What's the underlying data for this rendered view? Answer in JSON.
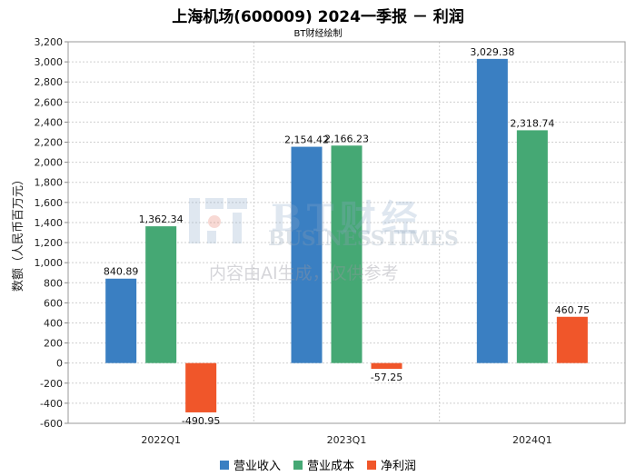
{
  "chart_data": {
    "type": "bar",
    "title": "上海机场(600009) 2024一季报 － 利润",
    "subtitle": "BT财经绘制",
    "xlabel": "",
    "ylabel": "数额（人民币百万元）",
    "ylim": [
      -600,
      3200
    ],
    "ytick_step": 200,
    "ytick_labels": [
      "-600",
      "-400",
      "-200",
      "0",
      "200",
      "400",
      "600",
      "800",
      "1,000",
      "1,200",
      "1,400",
      "1,600",
      "1,800",
      "2,000",
      "2,200",
      "2,400",
      "2,600",
      "2,800",
      "3,000",
      "3,200"
    ],
    "grid": true,
    "legend_position": "bottom",
    "categories": [
      "2022Q1",
      "2023Q1",
      "2024Q1"
    ],
    "series": [
      {
        "name": "营业收入",
        "color": "#3a7fc2",
        "values": [
          840.89,
          2154.42,
          3029.38
        ],
        "labels": [
          "840.89",
          "2,154.42",
          "3,029.38"
        ]
      },
      {
        "name": "营业成本",
        "color": "#45a874",
        "values": [
          1362.34,
          2166.23,
          2318.74
        ],
        "labels": [
          "1,362.34",
          "2,166.23",
          "2,318.74"
        ]
      },
      {
        "name": "净利润",
        "color": "#f0562a",
        "values": [
          -490.95,
          -57.25,
          460.75
        ],
        "labels": [
          "-490.95",
          "-57.25",
          "460.75"
        ]
      }
    ]
  },
  "watermark": {
    "brand": "BT财经",
    "tagline": "BUSINESSTIMES",
    "note": "内容由AI生成，仅供参考"
  }
}
